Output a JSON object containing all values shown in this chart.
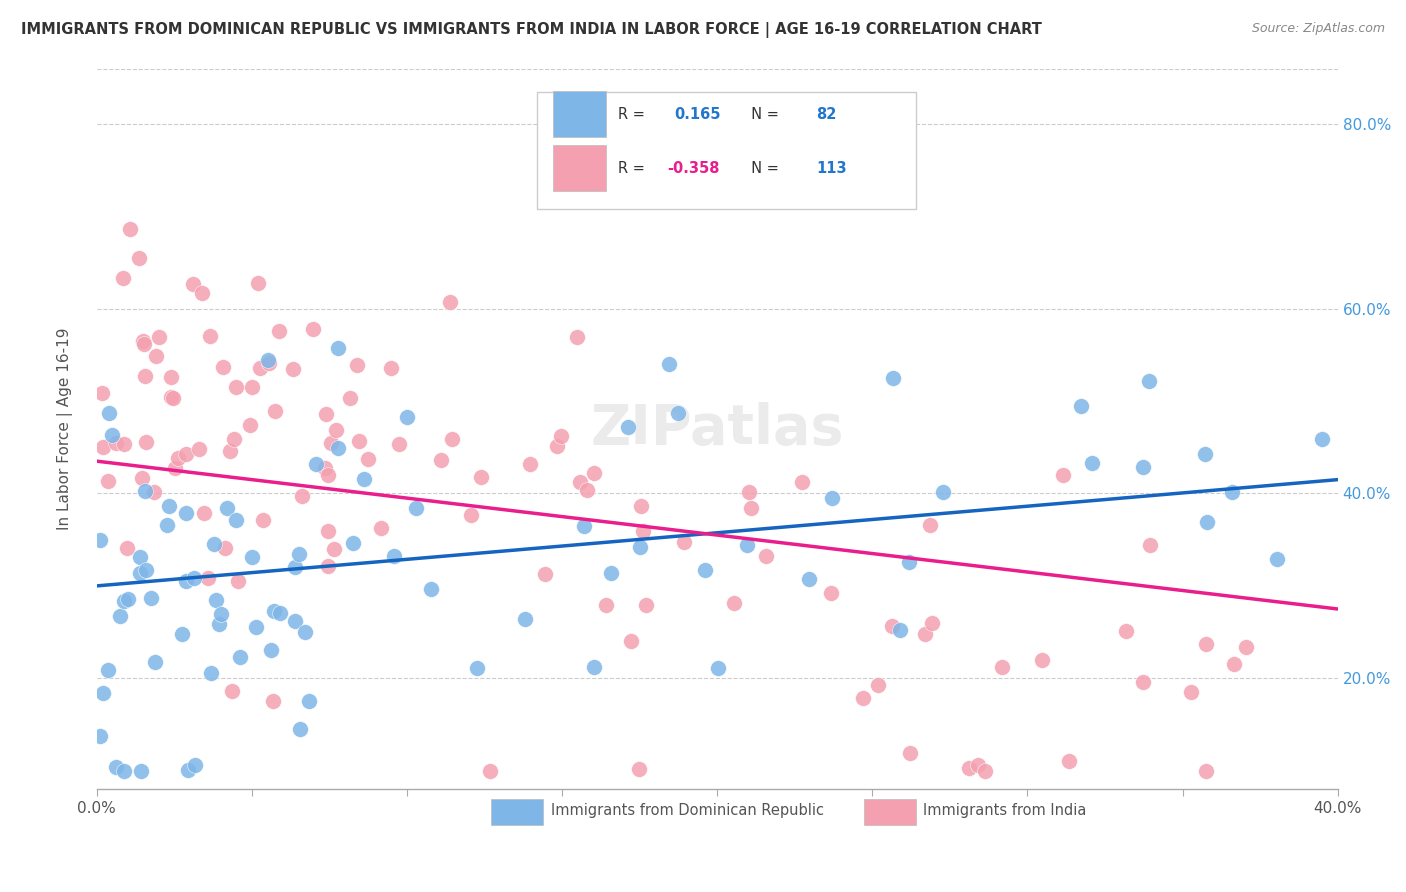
{
  "title": "IMMIGRANTS FROM DOMINICAN REPUBLIC VS IMMIGRANTS FROM INDIA IN LABOR FORCE | AGE 16-19 CORRELATION CHART",
  "source": "Source: ZipAtlas.com",
  "ylabel": "In Labor Force | Age 16-19",
  "xlim": [
    0.0,
    0.4
  ],
  "ylim": [
    0.08,
    0.86
  ],
  "yticks": [
    0.2,
    0.4,
    0.6,
    0.8
  ],
  "ytick_labels": [
    "20.0%",
    "40.0%",
    "60.0%",
    "80.0%"
  ],
  "R_blue": 0.165,
  "N_blue": 82,
  "R_pink": -0.358,
  "N_pink": 113,
  "blue_color": "#7EB6E8",
  "pink_color": "#F4A0B0",
  "blue_line_color": "#1565C0",
  "pink_line_color": "#E91E8C",
  "background_color": "#FFFFFF",
  "grid_color": "#CCCCCC",
  "title_color": "#333333",
  "blue_trend": [
    0.3,
    0.415
  ],
  "pink_trend": [
    0.435,
    0.275
  ]
}
